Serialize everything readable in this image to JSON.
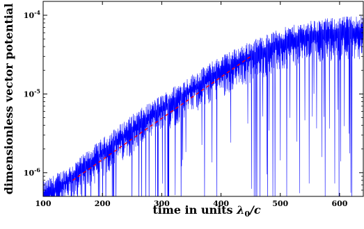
{
  "chart_data": {
    "type": "line",
    "title": "",
    "xlabel": "time in units λ0/c",
    "ylabel": "dimensionless vector potential",
    "xlim": [
      100,
      640
    ],
    "ylim": [
      5e-07,
      0.00015
    ],
    "yscale": "log",
    "grid": false,
    "x_ticks": [
      100,
      200,
      300,
      400,
      500,
      600
    ],
    "x_tick_labels": [
      "100",
      "200",
      "300",
      "400",
      "500",
      "600"
    ],
    "y_ticks": [
      1e-06,
      1e-05,
      0.0001
    ],
    "y_tick_labels": [
      "10-6",
      "10-5",
      "10-4"
    ],
    "series": [
      {
        "style": "oscillating-envelope",
        "color": "#0000ff",
        "envelope_top": [
          {
            "x": 100,
            "y": 7e-07
          },
          {
            "x": 150,
            "y": 1.2e-06
          },
          {
            "x": 200,
            "y": 2.5e-06
          },
          {
            "x": 250,
            "y": 5e-06
          },
          {
            "x": 300,
            "y": 9e-06
          },
          {
            "x": 350,
            "y": 1.6e-05
          },
          {
            "x": 400,
            "y": 2.8e-05
          },
          {
            "x": 450,
            "y": 4.3e-05
          },
          {
            "x": 500,
            "y": 6.2e-05
          },
          {
            "x": 550,
            "y": 7.8e-05
          },
          {
            "x": 600,
            "y": 8.7e-05
          },
          {
            "x": 640,
            "y": 9.2e-05
          }
        ],
        "envelope_band": [
          {
            "x": 100,
            "y": 4e-07
          },
          {
            "x": 150,
            "y": 7e-07
          },
          {
            "x": 200,
            "y": 1.4e-06
          },
          {
            "x": 250,
            "y": 2.8e-06
          },
          {
            "x": 300,
            "y": 5e-06
          },
          {
            "x": 350,
            "y": 9e-06
          },
          {
            "x": 400,
            "y": 1.5e-05
          },
          {
            "x": 450,
            "y": 2.3e-05
          },
          {
            "x": 500,
            "y": 3.2e-05
          },
          {
            "x": 550,
            "y": 4e-05
          },
          {
            "x": 600,
            "y": 4.4e-05
          },
          {
            "x": 640,
            "y": 4.6e-05
          }
        ]
      },
      {
        "style": "dashed-fit",
        "color": "#ff0000",
        "x": [
          150,
          450
        ],
        "y": [
          8e-07,
          3e-05
        ]
      }
    ]
  }
}
